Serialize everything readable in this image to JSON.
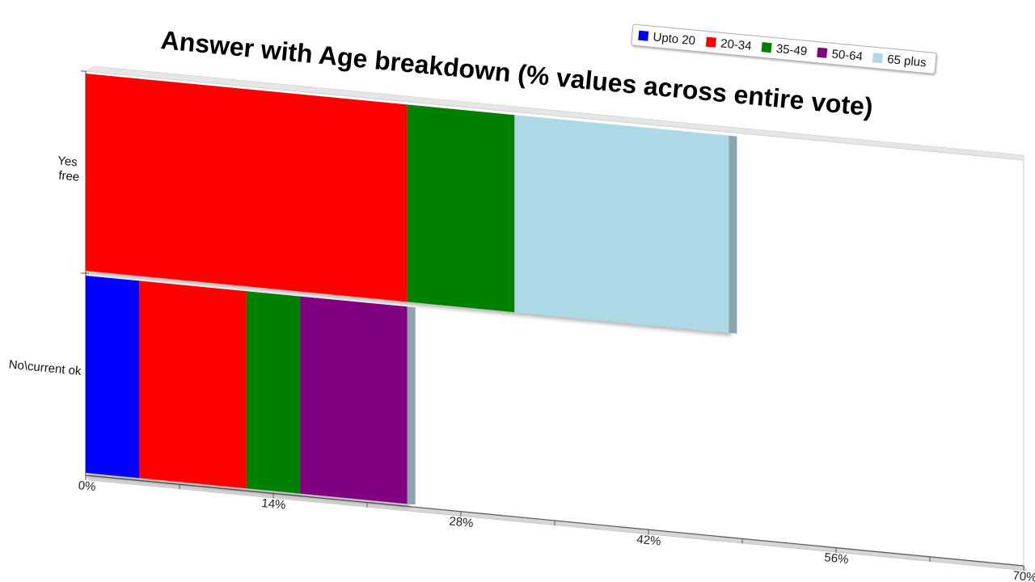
{
  "chart_data": {
    "type": "bar",
    "orientation": "horizontal",
    "stacked": true,
    "title": "Answer with Age breakdown (% values across entire vote)",
    "categories": [
      "Yes\nfree",
      "No\\current ok"
    ],
    "series": [
      {
        "name": "Upto 20",
        "color": "#0000ff",
        "values": [
          0,
          4
        ]
      },
      {
        "name": "20-34",
        "color": "#ff0000",
        "values": [
          24,
          8
        ]
      },
      {
        "name": "35-49",
        "color": "#008000",
        "values": [
          8,
          4
        ]
      },
      {
        "name": "50-64",
        "color": "#800080",
        "values": [
          0,
          8
        ]
      },
      {
        "name": "65 plus",
        "color": "#add8e6",
        "values": [
          16,
          0
        ]
      }
    ],
    "x_ticks": [
      "0%",
      "14%",
      "28%",
      "42%",
      "56%",
      "70%"
    ],
    "xlim": [
      0,
      70
    ],
    "legend_position": "top-right"
  }
}
